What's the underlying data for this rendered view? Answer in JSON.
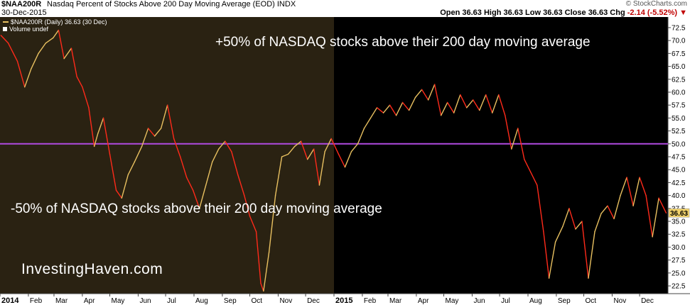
{
  "header": {
    "ticker": "$NAA200R",
    "description": "Nasdaq Percent of Stocks Above 200 Day Moving Average (EOD)",
    "exchange": "INDX",
    "date": "30-Dec-2015",
    "logo": "© StockCharts.com",
    "quote_prefix": "Open 36.63  High 36.63  Low 36.63  Close 36.63  Chg",
    "quote_change": "-2.14 (-5.52%)",
    "quote_arrow": "▼"
  },
  "legend": {
    "series_label": "$NAA200R (Daily) 36.63 (30 Dec)",
    "volume_label": "Volume undef"
  },
  "annotations": {
    "top": "+50% of NASDAQ stocks above their 200 day moving average",
    "bottom": "-50% of NASDAQ stocks above their 200 day moving average"
  },
  "brand": "InvestingHaven.com",
  "colors": {
    "background_2014": "#2a2212",
    "background_2015": "#000000",
    "line_down": "#ff2a1a",
    "line_up": "#e8c060",
    "reference_line": "#b04ae0",
    "last_value_box": "#f2d36b"
  },
  "chart_data": {
    "type": "line",
    "title": "Nasdaq Percent of Stocks Above 200 Day Moving Average (EOD)",
    "ylim": [
      21,
      74
    ],
    "y_ticks": [
      "72.5",
      "70.0",
      "67.5",
      "65.0",
      "62.5",
      "60.0",
      "57.5",
      "55.0",
      "52.5",
      "50.0",
      "47.5",
      "45.0",
      "42.5",
      "40.0",
      "37.5",
      "35.0",
      "32.5",
      "30.0",
      "27.5",
      "25.0",
      "22.5"
    ],
    "x_tick_labels": [
      "2014",
      "Feb",
      "Mar",
      "Apr",
      "May",
      "Jun",
      "Jul",
      "Aug",
      "Sep",
      "Oct",
      "Nov",
      "Dec",
      "2015",
      "Feb",
      "Mar",
      "Apr",
      "May",
      "Jun",
      "Jul",
      "Aug",
      "Sep",
      "Oct",
      "Nov",
      "Dec"
    ],
    "reference_line": 50,
    "last_value": "36.63",
    "series": [
      {
        "x": [
          "2014-01-02",
          "2014-01-10",
          "2014-01-20",
          "2014-01-28",
          "2014-02-04",
          "2014-02-12",
          "2014-02-20",
          "2014-02-28",
          "2014-03-06",
          "2014-03-12",
          "2014-03-20",
          "2014-03-26",
          "2014-04-01",
          "2014-04-08",
          "2014-04-14",
          "2014-04-18",
          "2014-04-24",
          "2014-05-01",
          "2014-05-08",
          "2014-05-14",
          "2014-05-21",
          "2014-05-28",
          "2014-06-05",
          "2014-06-12",
          "2014-06-19",
          "2014-06-26",
          "2014-07-03",
          "2014-07-10",
          "2014-07-17",
          "2014-07-24",
          "2014-07-31",
          "2014-08-07",
          "2014-08-14",
          "2014-08-21",
          "2014-08-28",
          "2014-09-04",
          "2014-09-11",
          "2014-09-18",
          "2014-09-25",
          "2014-10-01",
          "2014-10-08",
          "2014-10-13",
          "2014-10-16",
          "2014-10-22",
          "2014-10-29",
          "2014-11-05",
          "2014-11-12",
          "2014-11-19",
          "2014-11-26",
          "2014-12-03",
          "2014-12-10",
          "2014-12-16",
          "2014-12-22",
          "2014-12-29",
          "2015-01-06",
          "2015-01-13",
          "2015-01-20",
          "2015-01-27",
          "2015-02-03",
          "2015-02-10",
          "2015-02-17",
          "2015-02-24",
          "2015-03-03",
          "2015-03-10",
          "2015-03-17",
          "2015-03-24",
          "2015-03-31",
          "2015-04-07",
          "2015-04-14",
          "2015-04-21",
          "2015-04-28",
          "2015-05-05",
          "2015-05-12",
          "2015-05-19",
          "2015-05-26",
          "2015-06-02",
          "2015-06-09",
          "2015-06-16",
          "2015-06-23",
          "2015-06-30",
          "2015-07-07",
          "2015-07-14",
          "2015-07-21",
          "2015-07-28",
          "2015-08-04",
          "2015-08-11",
          "2015-08-18",
          "2015-08-24",
          "2015-08-31",
          "2015-09-08",
          "2015-09-15",
          "2015-09-22",
          "2015-09-29",
          "2015-10-06",
          "2015-10-13",
          "2015-10-20",
          "2015-10-27",
          "2015-11-03",
          "2015-11-10",
          "2015-11-17",
          "2015-11-24",
          "2015-12-01",
          "2015-12-08",
          "2015-12-15",
          "2015-12-22",
          "2015-12-30"
        ],
        "values": [
          71.0,
          69.5,
          66.0,
          61.0,
          64.5,
          67.5,
          69.5,
          70.5,
          72.0,
          66.5,
          68.5,
          63.0,
          61.0,
          57.0,
          49.5,
          52.0,
          55.0,
          48.0,
          41.0,
          39.5,
          44.0,
          46.5,
          49.5,
          53.0,
          51.5,
          53.0,
          57.5,
          51.0,
          47.5,
          43.5,
          41.0,
          37.5,
          42.0,
          46.5,
          49.0,
          50.5,
          48.5,
          44.0,
          40.0,
          36.0,
          33.0,
          23.0,
          21.5,
          29.0,
          40.0,
          47.5,
          48.0,
          49.5,
          50.5,
          47.0,
          49.0,
          42.0,
          48.5,
          51.0,
          48.0,
          45.5,
          48.5,
          50.0,
          53.0,
          55.0,
          57.0,
          56.0,
          57.5,
          55.5,
          58.0,
          56.5,
          59.0,
          60.5,
          58.5,
          61.5,
          55.5,
          58.0,
          56.0,
          59.5,
          57.0,
          58.5,
          56.5,
          59.5,
          56.0,
          59.5,
          55.5,
          49.0,
          53.0,
          47.0,
          44.5,
          42.0,
          33.0,
          24.0,
          31.0,
          34.0,
          37.5,
          33.5,
          35.0,
          24.0,
          33.0,
          36.5,
          38.0,
          35.5,
          40.0,
          43.5,
          38.0,
          43.5,
          40.0,
          32.0,
          39.5,
          36.63
        ]
      }
    ]
  }
}
